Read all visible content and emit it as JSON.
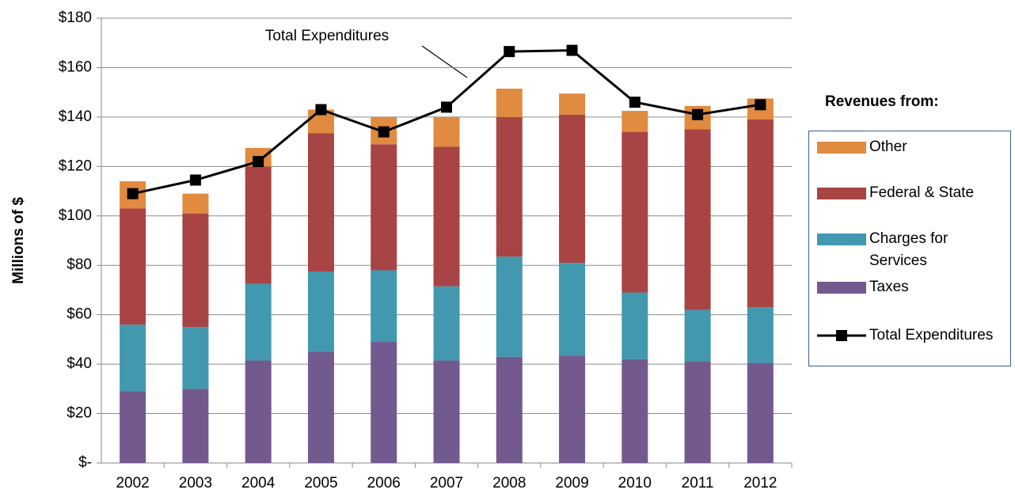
{
  "chart_data": {
    "type": "bar",
    "stacked": true,
    "y_label": "Millions of $",
    "annotation": "Total Expenditures",
    "legend_title": "Revenues from:",
    "legend_position": "right",
    "categories": [
      "2002",
      "2003",
      "2004",
      "2005",
      "2006",
      "2007",
      "2008",
      "2009",
      "2010",
      "2011",
      "2012"
    ],
    "series": [
      {
        "name": "Taxes",
        "type": "bar",
        "color": "#725a8f",
        "values": [
          29,
          30,
          41.5,
          45,
          49,
          41.5,
          43,
          43.5,
          42,
          41,
          40.5
        ]
      },
      {
        "name": "Charges for Services",
        "type": "bar",
        "color": "#4298ae",
        "values": [
          27,
          25,
          31,
          32.5,
          29,
          30,
          40.5,
          37.5,
          27,
          21,
          22.5
        ]
      },
      {
        "name": "Federal & State",
        "type": "bar",
        "color": "#a84444",
        "values": [
          47,
          46,
          47.5,
          56,
          51,
          56.5,
          56.5,
          60,
          65,
          73,
          76
        ]
      },
      {
        "name": "Other",
        "type": "bar",
        "color": "#e08b3f",
        "values": [
          11,
          8,
          7.5,
          9.5,
          11,
          12,
          11.5,
          8.5,
          8.5,
          9.5,
          8.5
        ]
      },
      {
        "name": "Total Expenditures",
        "type": "line",
        "color": "#000000",
        "values": [
          109,
          114.5,
          122,
          143,
          134,
          144,
          166.5,
          167,
          146,
          141,
          145
        ]
      }
    ],
    "ylim": [
      0,
      180
    ],
    "yticks": [
      {
        "value": 0,
        "label": "$-"
      },
      {
        "value": 20,
        "label": "$20"
      },
      {
        "value": 40,
        "label": "$40"
      },
      {
        "value": 60,
        "label": "$60"
      },
      {
        "value": 80,
        "label": "$80"
      },
      {
        "value": 100,
        "label": "$100"
      },
      {
        "value": 120,
        "label": "$120"
      },
      {
        "value": 140,
        "label": "$140"
      },
      {
        "value": 160,
        "label": "$160"
      },
      {
        "value": 180,
        "label": "$180"
      }
    ],
    "grid": true
  }
}
